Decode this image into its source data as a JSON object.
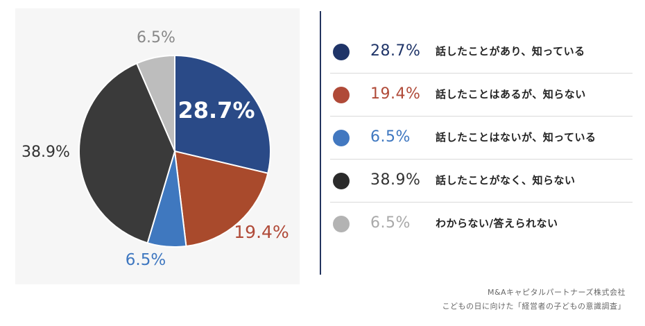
{
  "chart_data": {
    "type": "pie",
    "slices": [
      {
        "label": "話したことがあり、知っている",
        "value": 28.7,
        "value_label": "28.7%",
        "color": "#2a4a87"
      },
      {
        "label": "話したことはあるが、知らない",
        "value": 19.4,
        "value_label": "19.4%",
        "color": "#a94a2c"
      },
      {
        "label": "話したことはないが、知っている",
        "value": 6.5,
        "value_label": "6.5%",
        "color": "#3f78bf"
      },
      {
        "label": "話したことがなく、知らない",
        "value": 38.9,
        "value_label": "38.9%",
        "color": "#3a3a3a"
      },
      {
        "label": "わからない/答えられない",
        "value": 6.5,
        "value_label": "6.5%",
        "color": "#bdbdbd"
      }
    ],
    "legend_position": "right",
    "legend_marker_colors": [
      "#1f3468",
      "#b04a38",
      "#4278c0",
      "#2b2b2b",
      "#b3b3b3"
    ],
    "legend_value_colors": [
      "#1f3468",
      "#b04a38",
      "#3e77c0",
      "#333333",
      "#a9a9a9"
    ],
    "external_label_colors": [
      "#b04a38",
      "#3e77c0",
      "#333333",
      "#888888"
    ]
  },
  "source": {
    "line1": "M&Aキャピタルパートナーズ株式会社",
    "line2": "こどもの日に向けた「経営者の子どもの意識調査」"
  }
}
